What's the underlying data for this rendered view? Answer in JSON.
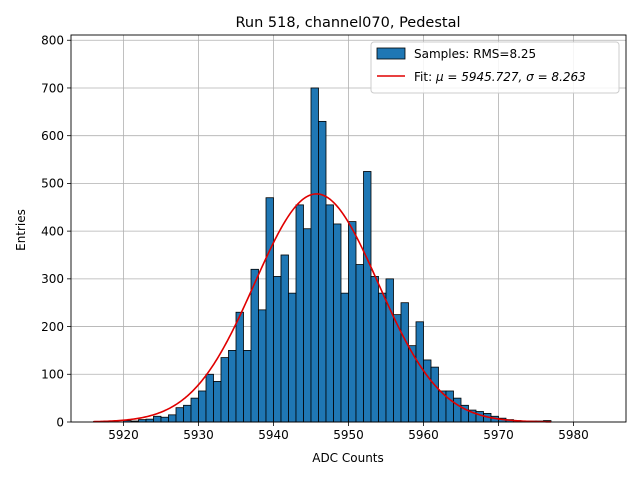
{
  "chart_data": {
    "type": "bar",
    "title": "Run 518, channel070, Pedestal",
    "xlabel": "ADC Counts",
    "ylabel": "Entries",
    "xlim": [
      5913,
      5987
    ],
    "ylim": [
      0,
      811
    ],
    "xticks": [
      5920,
      5930,
      5940,
      5950,
      5960,
      5970,
      5980
    ],
    "yticks": [
      0,
      100,
      200,
      300,
      400,
      500,
      600,
      700,
      800
    ],
    "grid": true,
    "legend_position": "top-right",
    "bin_width": 1,
    "histogram": {
      "name": "Samples: RMS=8.25",
      "color": "#1f77b4",
      "bin_starts": [
        5916,
        5917,
        5918,
        5919,
        5920,
        5921,
        5922,
        5923,
        5924,
        5925,
        5926,
        5927,
        5928,
        5929,
        5930,
        5931,
        5932,
        5933,
        5934,
        5935,
        5936,
        5937,
        5938,
        5939,
        5940,
        5941,
        5942,
        5943,
        5944,
        5945,
        5946,
        5947,
        5948,
        5949,
        5950,
        5951,
        5952,
        5953,
        5954,
        5955,
        5956,
        5957,
        5958,
        5959,
        5960,
        5961,
        5962,
        5963,
        5964,
        5965,
        5966,
        5967,
        5968,
        5969,
        5970,
        5971,
        5972,
        5973,
        5974,
        5975,
        5976
      ],
      "counts": [
        1,
        1,
        0,
        0,
        3,
        2,
        5,
        6,
        12,
        10,
        15,
        30,
        35,
        50,
        65,
        100,
        85,
        135,
        150,
        230,
        150,
        320,
        235,
        470,
        305,
        350,
        270,
        455,
        405,
        700,
        630,
        455,
        415,
        270,
        420,
        330,
        525,
        305,
        270,
        300,
        225,
        250,
        160,
        210,
        130,
        115,
        65,
        65,
        50,
        35,
        25,
        22,
        18,
        12,
        8,
        5,
        3,
        2,
        2,
        2,
        3
      ]
    },
    "fit": {
      "name": "Fit",
      "label_prefix": "Fit: ",
      "label_formula": "μ = 5945.727, σ = 8.263",
      "color": "#e00000",
      "mu": 5945.727,
      "sigma": 8.263,
      "amplitude": 478,
      "x_range": [
        5916,
        5977
      ]
    }
  }
}
